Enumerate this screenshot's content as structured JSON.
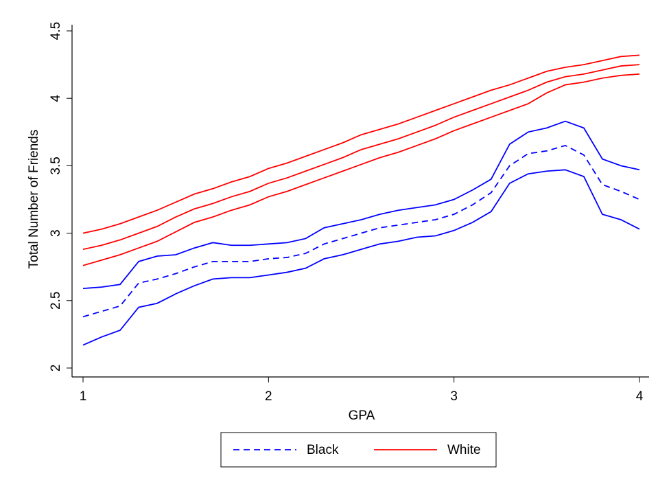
{
  "chart_data": {
    "type": "line",
    "x_label": "GPA",
    "y_label": "Total Number of Friends",
    "x": [
      1.0,
      1.1,
      1.2,
      1.3,
      1.4,
      1.5,
      1.6,
      1.7,
      1.8,
      1.9,
      2.0,
      2.1,
      2.2,
      2.3,
      2.4,
      2.5,
      2.6,
      2.7,
      2.8,
      2.9,
      3.0,
      3.1,
      3.2,
      3.3,
      3.4,
      3.5,
      3.6,
      3.7,
      3.8,
      3.9,
      4.0
    ],
    "xlim": [
      1,
      4
    ],
    "xticks": [
      1,
      2,
      3,
      4
    ],
    "ylim": [
      2,
      4.5
    ],
    "yticks": [
      2,
      2.5,
      3,
      3.5,
      4,
      4.5
    ],
    "series": [
      {
        "name": "Black",
        "color": "#0000ff",
        "dashed": true,
        "values": [
          2.38,
          2.42,
          2.46,
          2.63,
          2.66,
          2.7,
          2.75,
          2.79,
          2.79,
          2.79,
          2.81,
          2.82,
          2.85,
          2.92,
          2.96,
          3.0,
          3.04,
          3.06,
          3.08,
          3.1,
          3.14,
          3.21,
          3.3,
          3.5,
          3.59,
          3.61,
          3.65,
          3.58,
          3.36,
          3.31,
          3.25
        ],
        "upper": [
          2.59,
          2.6,
          2.62,
          2.79,
          2.83,
          2.84,
          2.89,
          2.93,
          2.91,
          2.91,
          2.92,
          2.93,
          2.96,
          3.04,
          3.07,
          3.1,
          3.14,
          3.17,
          3.19,
          3.21,
          3.25,
          3.32,
          3.4,
          3.66,
          3.75,
          3.78,
          3.83,
          3.78,
          3.55,
          3.5,
          3.47
        ],
        "lower": [
          2.17,
          2.23,
          2.28,
          2.45,
          2.48,
          2.55,
          2.61,
          2.66,
          2.67,
          2.67,
          2.69,
          2.71,
          2.74,
          2.81,
          2.84,
          2.88,
          2.92,
          2.94,
          2.97,
          2.98,
          3.02,
          3.08,
          3.16,
          3.37,
          3.44,
          3.46,
          3.47,
          3.42,
          3.14,
          3.1,
          3.03
        ]
      },
      {
        "name": "White",
        "color": "#ff0000",
        "dashed": false,
        "values": [
          2.88,
          2.91,
          2.95,
          3.0,
          3.05,
          3.12,
          3.18,
          3.22,
          3.27,
          3.31,
          3.37,
          3.41,
          3.46,
          3.51,
          3.56,
          3.62,
          3.66,
          3.7,
          3.75,
          3.8,
          3.86,
          3.91,
          3.96,
          4.01,
          4.06,
          4.12,
          4.16,
          4.18,
          4.21,
          4.24,
          4.25
        ],
        "upper": [
          3.0,
          3.03,
          3.07,
          3.12,
          3.17,
          3.23,
          3.29,
          3.33,
          3.38,
          3.42,
          3.48,
          3.52,
          3.57,
          3.62,
          3.67,
          3.73,
          3.77,
          3.81,
          3.86,
          3.91,
          3.96,
          4.01,
          4.06,
          4.1,
          4.15,
          4.2,
          4.23,
          4.25,
          4.28,
          4.31,
          4.32
        ],
        "lower": [
          2.76,
          2.8,
          2.84,
          2.89,
          2.94,
          3.01,
          3.08,
          3.12,
          3.17,
          3.21,
          3.27,
          3.31,
          3.36,
          3.41,
          3.46,
          3.51,
          3.56,
          3.6,
          3.65,
          3.7,
          3.76,
          3.81,
          3.86,
          3.91,
          3.96,
          4.04,
          4.1,
          4.12,
          4.15,
          4.17,
          4.18
        ]
      }
    ],
    "legend": "bottom"
  }
}
